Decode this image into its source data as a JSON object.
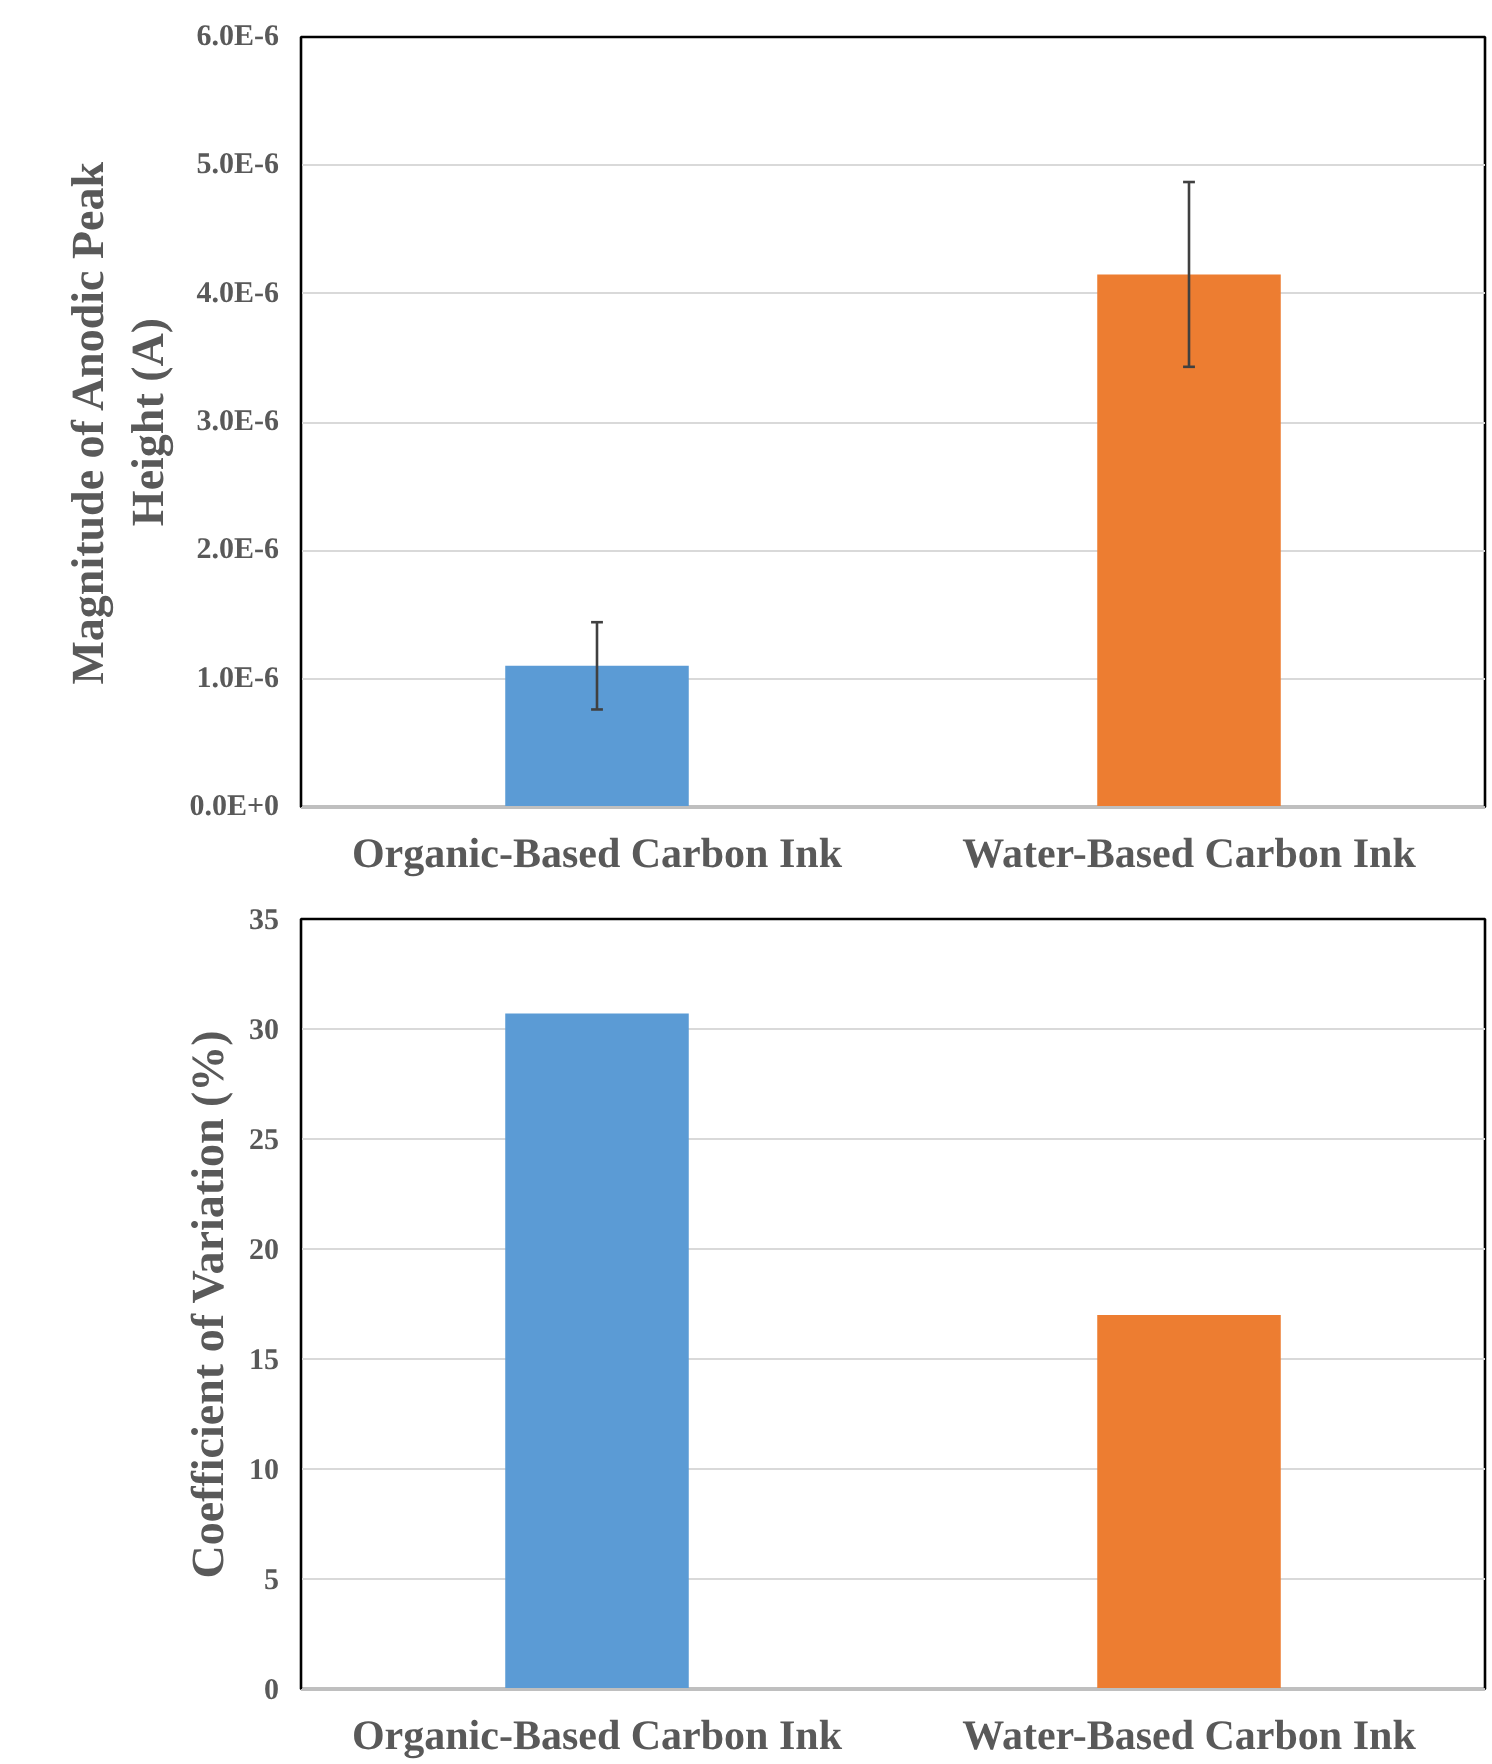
{
  "chart_data": [
    {
      "type": "bar",
      "categories": [
        "Organic-Based Carbon Ink",
        "Water-Based Carbon Ink"
      ],
      "values": [
        1.1e-06,
        4.15e-06
      ],
      "errors": [
        3.4e-07,
        7.2e-07
      ],
      "colors": [
        "#5b9bd5",
        "#ed7d31"
      ],
      "ylabel": "Magnitude of Anodic Peak\nHeight (A)",
      "ylim": [
        0,
        6e-06
      ],
      "yticks": [
        {
          "value": 0,
          "label": "0.0E+0"
        },
        {
          "value": 1e-06,
          "label": "1.0E-6"
        },
        {
          "value": 2e-06,
          "label": "2.0E-6"
        },
        {
          "value": 3e-06,
          "label": "3.0E-6"
        },
        {
          "value": 4e-06,
          "label": "4.0E-6"
        },
        {
          "value": 5e-06,
          "label": "5.0E-6"
        },
        {
          "value": 6e-06,
          "label": "6.0E-6"
        }
      ],
      "grid": "y"
    },
    {
      "type": "bar",
      "categories": [
        "Organic-Based Carbon Ink",
        "Water-Based Carbon Ink"
      ],
      "values": [
        30.7,
        17.0
      ],
      "colors": [
        "#5b9bd5",
        "#ed7d31"
      ],
      "ylabel": "Coefficient of Variation (%)",
      "ylim": [
        0,
        35
      ],
      "yticks": [
        0,
        5,
        10,
        15,
        20,
        25,
        30,
        35
      ],
      "grid": "y"
    }
  ]
}
